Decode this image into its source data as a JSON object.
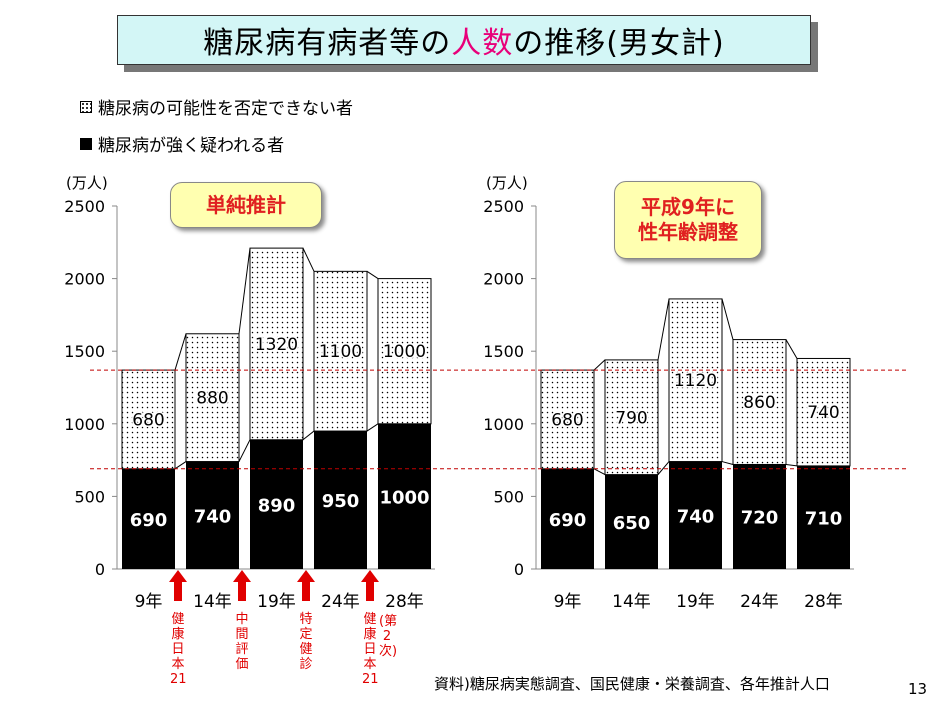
{
  "title": {
    "pre": "糖尿病有病者等の",
    "highlight": "人数",
    "post": "の推移(男女計)"
  },
  "legend": [
    {
      "label": "糖尿病の可能性を否定できない者",
      "pattern": "dotted"
    },
    {
      "label": "糖尿病が強く疑われる者",
      "pattern": "black"
    }
  ],
  "colors": {
    "title_bg": "#d3f6f6",
    "title_highlight": "#e8007a",
    "note_bg": "#ffffb0",
    "note_text": "#e02020",
    "arrow": "#e00000",
    "ref_line": "#c00000"
  },
  "left_note": "単純推計",
  "right_note": [
    "平成9年に",
    "性年齢調整"
  ],
  "events": [
    {
      "lines": [
        "健",
        "康",
        "日",
        "本",
        "21"
      ]
    },
    {
      "lines": [
        "中",
        "間",
        "評",
        "価"
      ]
    },
    {
      "lines": [
        "特",
        "定",
        "健",
        "診"
      ]
    },
    {
      "lines": [
        "健",
        "康",
        "日",
        "本",
        "21"
      ]
    },
    {
      "lines": [
        "(第",
        "2",
        "次)"
      ]
    }
  ],
  "source": "資料)糖尿病実態調査、国民健康・栄養調査、各年推計人口",
  "page_number": "13",
  "chart_data": [
    {
      "type": "bar",
      "stacked": true,
      "title": "単純推計",
      "unit_label": "(万人)",
      "categories": [
        "9年",
        "14年",
        "19年",
        "24年",
        "28年"
      ],
      "series": [
        {
          "name": "糖尿病が強く疑われる者",
          "values": [
            690,
            740,
            890,
            950,
            1000
          ]
        },
        {
          "name": "糖尿病の可能性を否定できない者",
          "values": [
            680,
            880,
            1320,
            1100,
            1000
          ]
        }
      ],
      "ylim": [
        0,
        2500
      ],
      "yticks": [
        "0",
        "500",
        "1000",
        "1500",
        "2000",
        "2500"
      ],
      "reference_lines": [
        690,
        1370
      ]
    },
    {
      "type": "bar",
      "stacked": true,
      "title": "平成9年に性年齢調整",
      "unit_label": "(万人)",
      "categories": [
        "9年",
        "14年",
        "19年",
        "24年",
        "28年"
      ],
      "series": [
        {
          "name": "糖尿病が強く疑われる者",
          "values": [
            690,
            650,
            740,
            720,
            710
          ]
        },
        {
          "name": "糖尿病の可能性を否定できない者",
          "values": [
            680,
            790,
            1120,
            860,
            740
          ]
        }
      ],
      "ylim": [
        0,
        2500
      ],
      "yticks": [
        "0",
        "500",
        "1000",
        "1500",
        "2000",
        "2500"
      ],
      "reference_lines": [
        690,
        1370
      ]
    }
  ]
}
